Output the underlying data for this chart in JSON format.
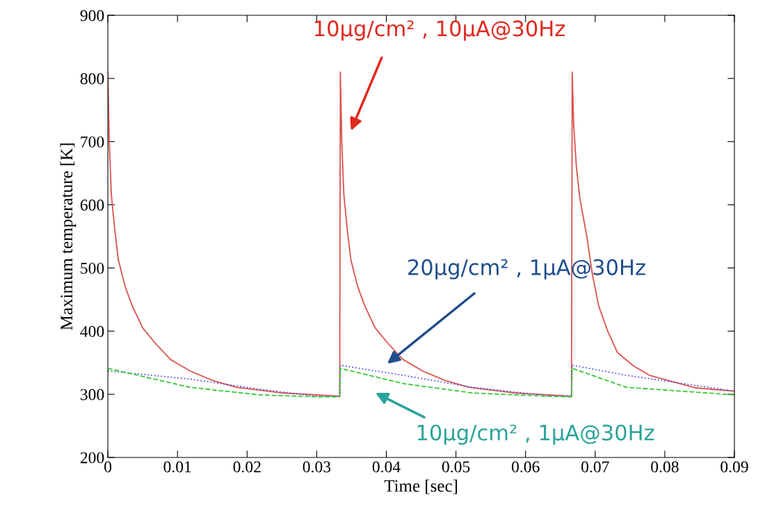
{
  "chart_data": {
    "type": "line",
    "xlabel": "Time [sec]",
    "ylabel": "Maximum temperature [K]",
    "xlim": [
      0,
      0.09
    ],
    "ylim": [
      200,
      900
    ],
    "xticks": [
      0,
      0.01,
      0.02,
      0.03,
      0.04,
      0.05,
      0.06,
      0.07,
      0.08,
      0.09
    ],
    "yticks": [
      200,
      300,
      400,
      500,
      600,
      700,
      800,
      900
    ],
    "grid": false,
    "legend": false,
    "series": [
      {
        "color": "#d9534f",
        "line_style": "solid",
        "x": [
          0,
          0.0002,
          0.0005,
          0.001,
          0.0015,
          0.0025,
          0.0035,
          0.005,
          0.0068,
          0.009,
          0.0118,
          0.015,
          0.0185,
          0.0252,
          0.0333,
          0.0334,
          0.0336,
          0.0339,
          0.0344,
          0.0349,
          0.0359,
          0.0369,
          0.0384,
          0.0402,
          0.0424,
          0.0452,
          0.0484,
          0.0519,
          0.0586,
          0.0666,
          0.0667,
          0.0669,
          0.0673,
          0.0678,
          0.0688,
          0.0696,
          0.0705,
          0.0718,
          0.0732,
          0.0755,
          0.0778,
          0.0845,
          0.09
        ],
        "values": [
          810,
          700,
          616,
          560,
          513,
          470,
          440,
          405,
          381,
          355,
          337,
          322,
          311,
          302,
          297,
          810,
          700,
          616,
          560,
          513,
          470,
          440,
          405,
          381,
          355,
          337,
          322,
          311,
          302,
          297,
          810,
          730,
          660,
          610,
          550,
          490,
          440,
          400,
          366,
          345,
          330,
          310,
          305
        ]
      },
      {
        "color": "#5555dd",
        "line_style": "dotted",
        "x": [
          0,
          0.0118,
          0.0218,
          0.03,
          0.0333,
          0.0334,
          0.0424,
          0.0524,
          0.063,
          0.0666,
          0.0667,
          0.0745,
          0.09
        ],
        "values": [
          337,
          324,
          308,
          297,
          297,
          346,
          330,
          311,
          298,
          297,
          346,
          330,
          305
        ]
      },
      {
        "color": "#33cc33",
        "line_style": "dashed",
        "x": [
          0,
          0.0118,
          0.0218,
          0.03,
          0.0333,
          0.0334,
          0.0424,
          0.0524,
          0.063,
          0.0666,
          0.0667,
          0.0745,
          0.09
        ],
        "values": [
          341,
          311,
          299,
          296,
          296,
          341,
          317,
          302,
          297,
          296,
          341,
          311,
          299
        ]
      }
    ],
    "annotations": [
      "10μg/cm² , 10μA@30Hz",
      "20μg/cm² , 1μA@30Hz",
      "10μg/cm² , 1μA@30Hz"
    ]
  }
}
